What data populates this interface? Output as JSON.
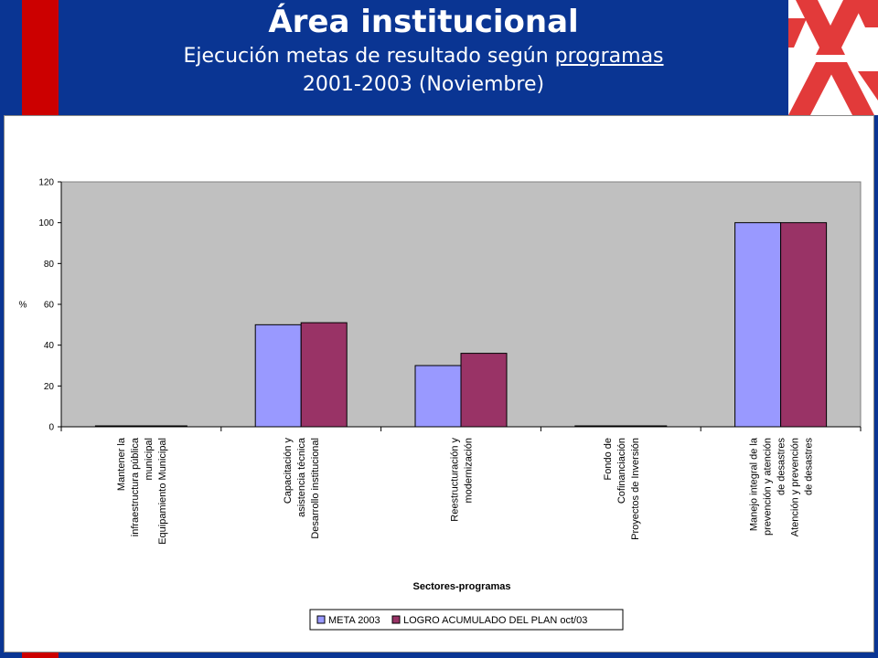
{
  "header": {
    "title": "Área institucional",
    "subtitle_pre": "Ejecución metas de resultado según ",
    "subtitle_link": "programas",
    "subtitle_line2": "2001-2003 (Noviembre)"
  },
  "colors": {
    "background": "#0a3593",
    "accent_red": "#cc0000",
    "plot_area": "#c0c0c0",
    "series_meta": "#9999ff",
    "series_logro": "#993366"
  },
  "chart_data": {
    "type": "bar",
    "title": "",
    "xlabel": "Sectores-programas",
    "ylabel": "%",
    "ylim": [
      0,
      120
    ],
    "yticks": [
      0,
      20,
      40,
      60,
      80,
      100,
      120
    ],
    "categories": [
      [
        "Mantener la",
        "infraestructura pública",
        "municipal",
        "Equipamiento Municipal"
      ],
      [
        "Capacitación y",
        "asistencia técnica",
        "Desarrollo institucional"
      ],
      [
        "Reestructuración y",
        "modernización"
      ],
      [
        "Fondo de",
        "Cofinanciación",
        "Proyectos de Inversión"
      ],
      [
        "Manejo integral de la",
        "prevención y atención",
        "de desastres",
        "Atención y prevención",
        "de desastres"
      ]
    ],
    "series": [
      {
        "name": "META 2003",
        "values": [
          0,
          50,
          30,
          0,
          100
        ]
      },
      {
        "name": "LOGRO ACUMULADO DEL PLAN oct/03",
        "values": [
          0,
          51,
          36,
          0,
          100
        ]
      }
    ],
    "grid": false,
    "legend": "bottom"
  }
}
